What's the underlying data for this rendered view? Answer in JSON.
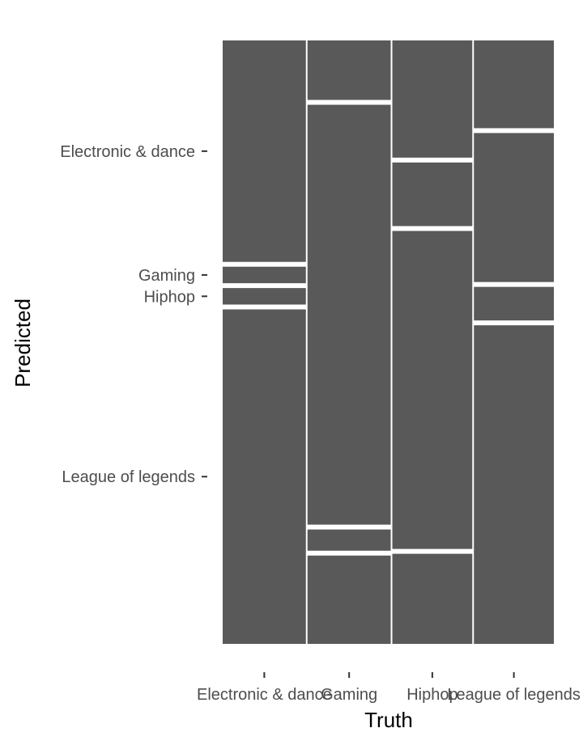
{
  "chart_data": {
    "type": "mosaic",
    "xlabel": "Truth",
    "ylabel": "Predicted",
    "categories": [
      "Electronic & dance",
      "Gaming",
      "Hiphop",
      "League of legends"
    ],
    "y_tick_labels": [
      "Electronic & dance",
      "Gaming",
      "Hiphop",
      "League of legends"
    ],
    "column_proportions": [
      0.255,
      0.255,
      0.245,
      0.245
    ],
    "series": [
      {
        "name": "Electronic & dance",
        "values": [
          0.376,
          0.101,
          0.199,
          0.149
        ]
      },
      {
        "name": "Gaming",
        "values": [
          0.028,
          0.713,
          0.108,
          0.253
        ]
      },
      {
        "name": "Hiphop",
        "values": [
          0.028,
          0.036,
          0.54,
          0.057
        ]
      },
      {
        "name": "League of legends",
        "values": [
          0.568,
          0.15,
          0.153,
          0.541
        ]
      }
    ],
    "fill_color": "#595959",
    "separator_color": "#ffffff",
    "grid": false,
    "legend": "none"
  }
}
